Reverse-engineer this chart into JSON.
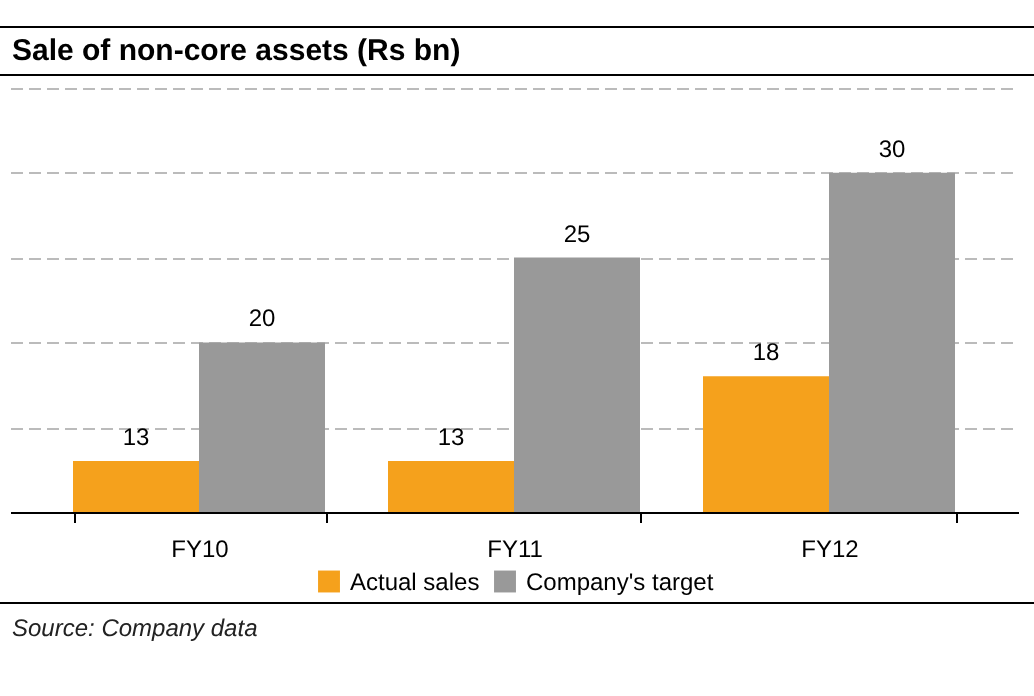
{
  "chart_data": {
    "type": "bar",
    "title": "Sale of non-core assets (Rs bn)",
    "categories": [
      "FY10",
      "FY11",
      "FY12"
    ],
    "series": [
      {
        "name": "Actual sales",
        "color": "#f5a11c",
        "values": [
          13,
          13,
          18
        ]
      },
      {
        "name": "Company's target",
        "color": "#999999",
        "values": [
          20,
          25,
          30
        ]
      }
    ],
    "ylim": [
      10,
      35
    ],
    "yticks": [
      {
        "value": 15,
        "label": null
      },
      {
        "value": 20,
        "label": null
      },
      {
        "value": 25,
        "label": null
      },
      {
        "value": 30,
        "label": null
      },
      {
        "value": 35,
        "label": null
      }
    ],
    "tick_labels": "x",
    "grid": "y",
    "legend": "bottom",
    "data_labels": true,
    "annotations": [
      "Source: Company data"
    ]
  }
}
